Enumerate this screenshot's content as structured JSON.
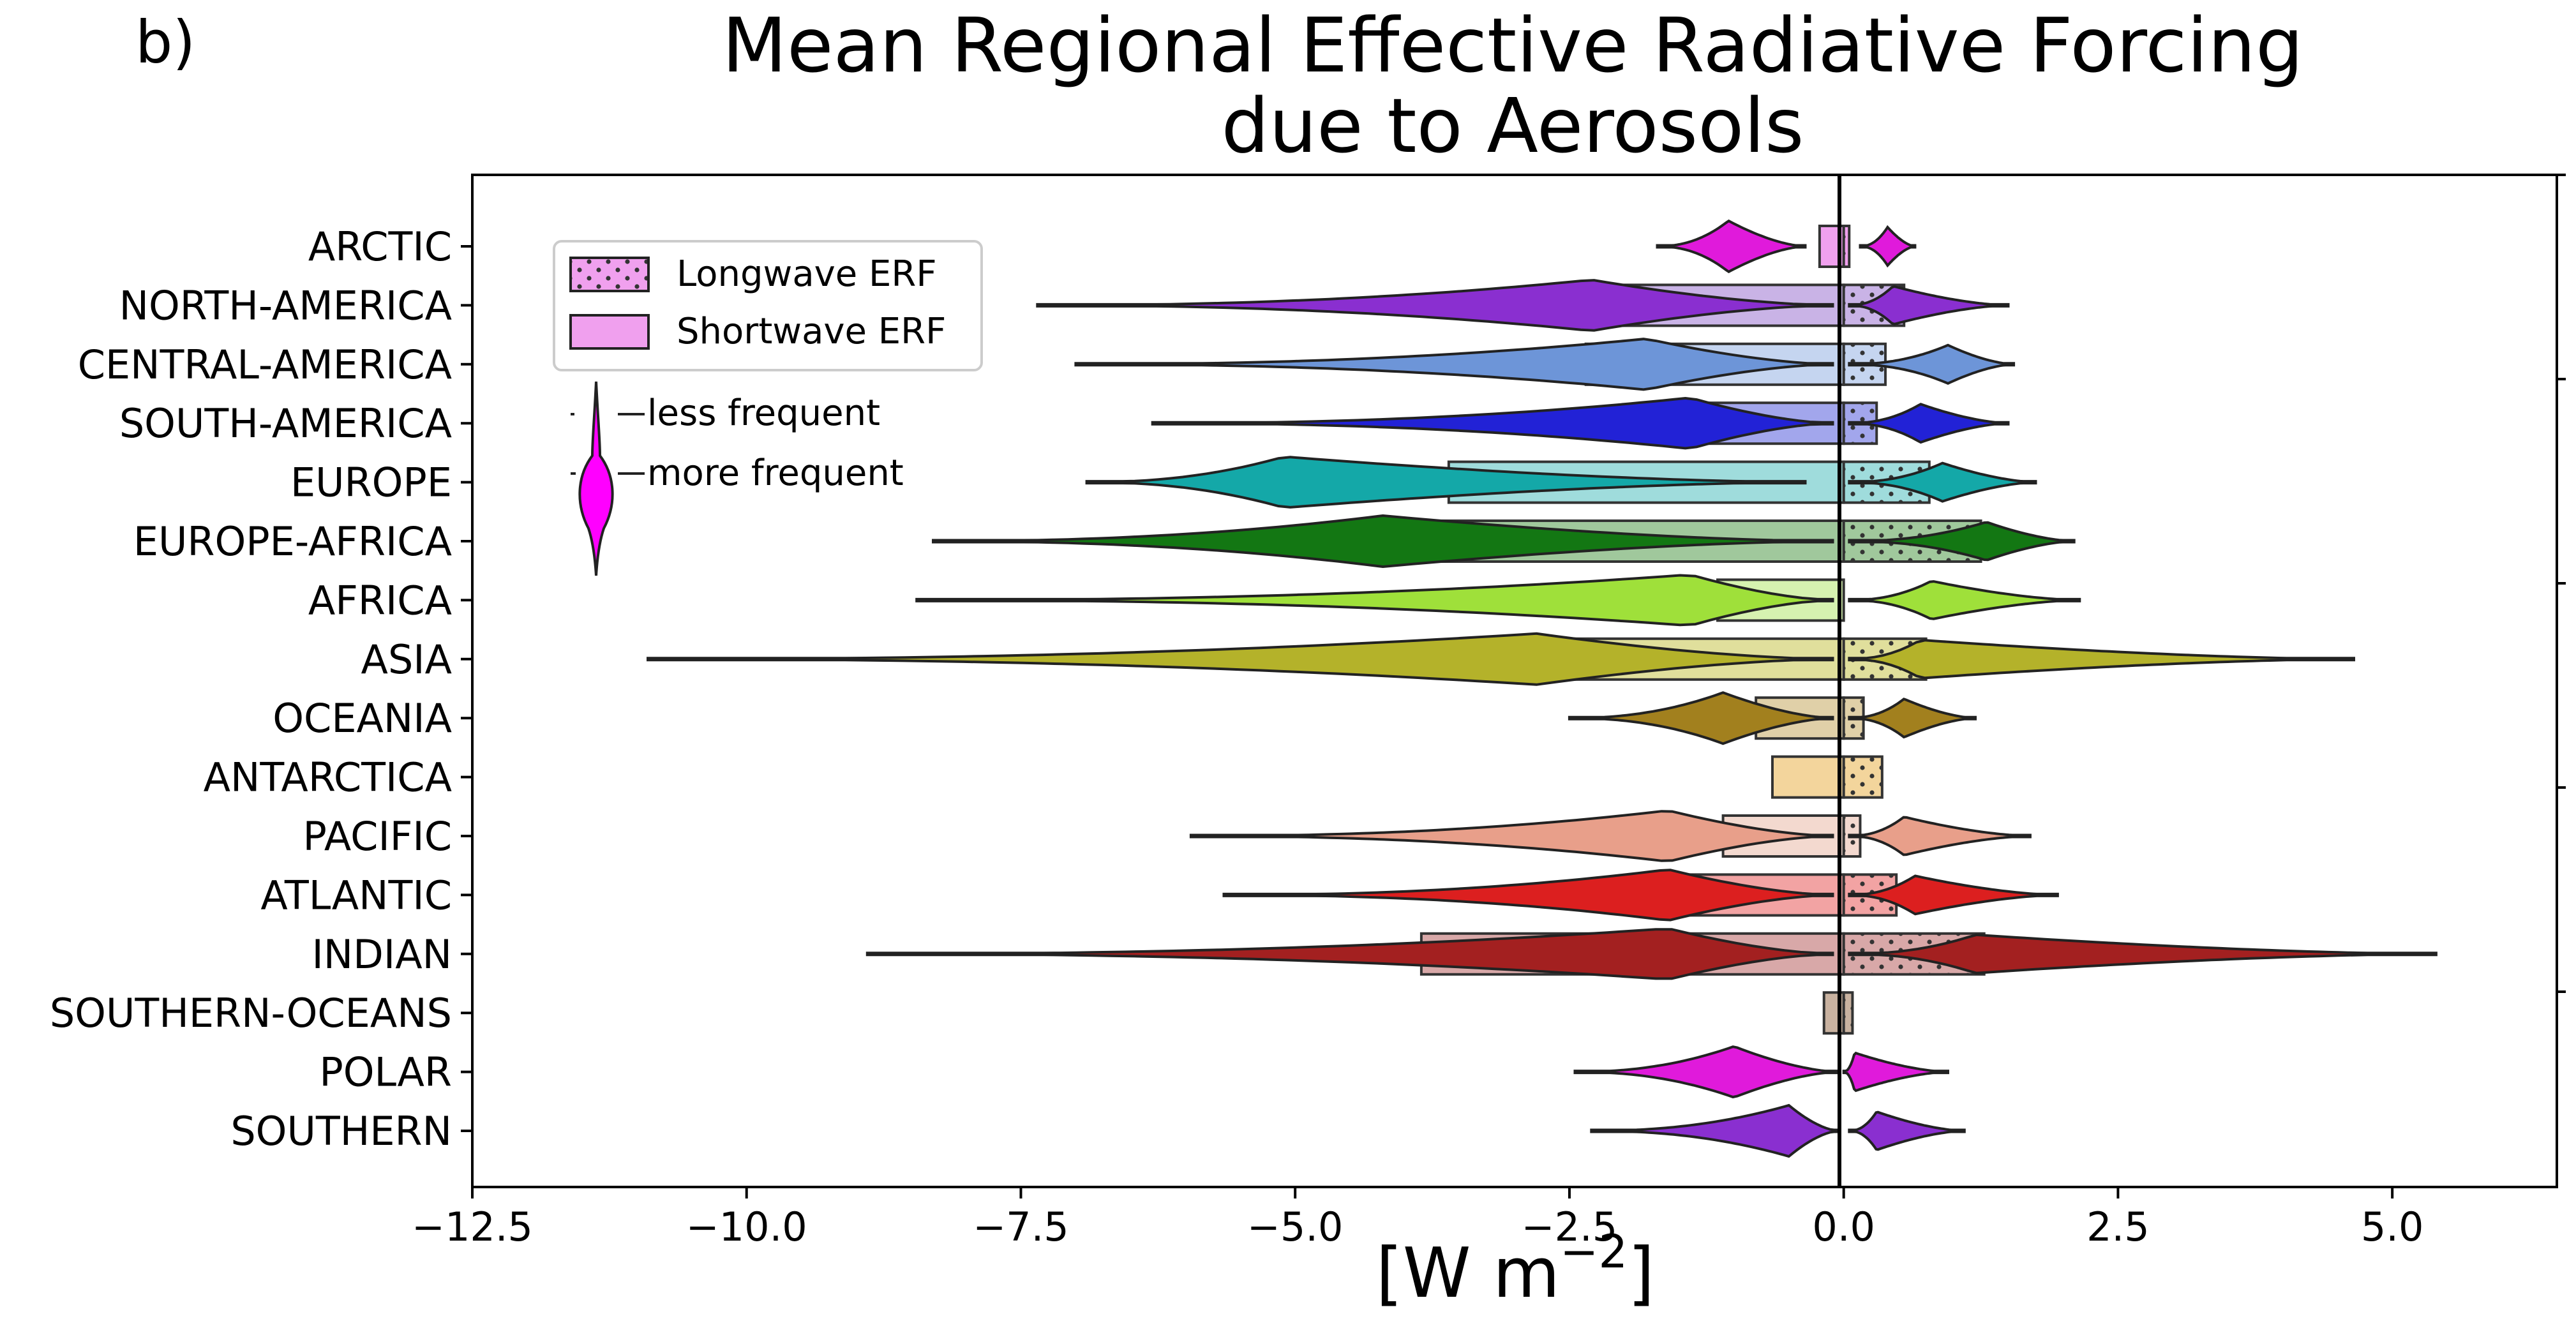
{
  "panel_label": "b)",
  "chart_data": {
    "type": "bar",
    "title_line1": "Mean Regional Effective Radiative Forcing",
    "title_line2": "due to Aerosols",
    "xlabel": "[W m",
    "xlabel_sup": "−2",
    "xlabel_close": "]",
    "xlim": [
      -12.5,
      6.5
    ],
    "xticks": [
      -12.5,
      -10.0,
      -7.5,
      -5.0,
      -2.5,
      0.0,
      2.5,
      5.0
    ],
    "xtick_labels": [
      "−12.5",
      "−10.0",
      "−7.5",
      "−5.0",
      "−2.5",
      "0.0",
      "2.5",
      "5.0"
    ],
    "legend": {
      "longwave": "Longwave ERF",
      "shortwave": "Shortwave ERF",
      "less_frequent": "less frequent",
      "more_frequent": "more frequent"
    },
    "regions": [
      {
        "name": "ARCTIC",
        "color": "#f0a0ee",
        "violin_color": "#e01adb",
        "sw_mean": -0.22,
        "lw_mean": 0.05,
        "sw_range": [
          -1.7,
          -0.35
        ],
        "sw_mode": -1.05,
        "lw_range": [
          0.15,
          0.65
        ],
        "lw_mode": 0.4
      },
      {
        "name": "NORTH-AMERICA",
        "color": "#c9b3e6",
        "violin_color": "#8a2fd0",
        "sw_mean": -2.5,
        "lw_mean": 0.55,
        "sw_range": [
          -7.35,
          -0.1
        ],
        "sw_mode": -2.3,
        "lw_range": [
          0.05,
          1.5
        ],
        "lw_mode": 0.45
      },
      {
        "name": "CENTRAL-AMERICA",
        "color": "#c5d5f0",
        "violin_color": "#6d95d8",
        "sw_mean": -2.35,
        "lw_mean": 0.38,
        "sw_range": [
          -7.0,
          -0.1
        ],
        "sw_mode": -1.8,
        "lw_range": [
          0.05,
          1.55
        ],
        "lw_mode": 0.95
      },
      {
        "name": "SOUTH-AMERICA",
        "color": "#a2a6ec",
        "violin_color": "#2222d6",
        "sw_mean": -1.5,
        "lw_mean": 0.3,
        "sw_range": [
          -6.3,
          -0.1
        ],
        "sw_mode": -1.4,
        "lw_range": [
          0.05,
          1.5
        ],
        "lw_mode": 0.7
      },
      {
        "name": "EUROPE",
        "color": "#9fdcdc",
        "violin_color": "#14a8a8",
        "sw_mean": -3.6,
        "lw_mean": 0.78,
        "sw_range": [
          -6.9,
          -0.35
        ],
        "sw_mode": -5.1,
        "lw_range": [
          0.05,
          1.75
        ],
        "lw_mode": 0.9
      },
      {
        "name": "EUROPE-AFRICA",
        "color": "#a0c89c",
        "violin_color": "#137713",
        "sw_mean": -3.8,
        "lw_mean": 1.25,
        "sw_range": [
          -8.3,
          -0.1
        ],
        "sw_mode": -4.2,
        "lw_range": [
          0.05,
          2.1
        ],
        "lw_mode": 1.3
      },
      {
        "name": "AFRICA",
        "color": "#d6f2b0",
        "violin_color": "#9fe03a",
        "sw_mean": -1.15,
        "lw_mean": 0.0,
        "sw_range": [
          -8.45,
          -0.1
        ],
        "sw_mode": -1.4,
        "lw_range": [
          0.05,
          2.15
        ],
        "lw_mode": 0.8
      },
      {
        "name": "ASIA",
        "color": "#e0df9c",
        "violin_color": "#b4b22a",
        "sw_mean": -3.1,
        "lw_mean": 0.75,
        "sw_range": [
          -10.9,
          -0.1
        ],
        "sw_mode": -2.8,
        "lw_range": [
          0.05,
          4.65
        ],
        "lw_mode": 0.7
      },
      {
        "name": "OCEANIA",
        "color": "#e0d0a8",
        "violin_color": "#a2801e",
        "sw_mean": -0.8,
        "lw_mean": 0.18,
        "sw_range": [
          -2.5,
          -0.1
        ],
        "sw_mode": -1.1,
        "lw_range": [
          0.05,
          1.2
        ],
        "lw_mode": 0.55
      },
      {
        "name": "ANTARCTICA",
        "color": "#f3d59c",
        "violin_color": "#d8a845",
        "sw_mean": -0.65,
        "lw_mean": 0.35
      },
      {
        "name": "PACIFIC",
        "color": "#f3d9cf",
        "violin_color": "#e89f8a",
        "sw_mean": -1.1,
        "lw_mean": 0.15,
        "sw_range": [
          -5.95,
          -0.1
        ],
        "sw_mode": -1.6,
        "lw_range": [
          0.05,
          1.7
        ],
        "lw_mode": 0.55
      },
      {
        "name": "ATLANTIC",
        "color": "#f2a3a3",
        "violin_color": "#dc1f1f",
        "sw_mean": -1.55,
        "lw_mean": 0.48,
        "sw_range": [
          -5.65,
          -0.1
        ],
        "sw_mode": -1.6,
        "lw_range": [
          0.05,
          1.95
        ],
        "lw_mode": 0.65
      },
      {
        "name": "INDIAN",
        "color": "#d8a8a8",
        "violin_color": "#a32020",
        "sw_mean": -3.85,
        "lw_mean": 1.28,
        "sw_range": [
          -8.9,
          -0.1
        ],
        "sw_mode": -1.6,
        "lw_range": [
          0.05,
          5.4
        ],
        "lw_mode": 1.2
      },
      {
        "name": "SOUTHERN-OCEANS",
        "color": "#c9b2a0",
        "violin_color": "#8e6e52",
        "sw_mean": -0.18,
        "lw_mean": 0.08
      },
      {
        "name": "POLAR",
        "color": "#f0a0ee",
        "violin_color": "#e01adb",
        "sw_mean": 0,
        "lw_mean": 0,
        "sw_range": [
          -2.45,
          -0.05
        ],
        "sw_mode": -1.0,
        "lw_range": [
          0.0,
          0.95
        ],
        "lw_mode": 0.1
      },
      {
        "name": "SOUTHERN",
        "color": "#c9b3e6",
        "violin_color": "#8a2fd0",
        "sw_mean": 0,
        "lw_mean": 0,
        "sw_range": [
          -2.3,
          -0.05
        ],
        "sw_mode": -0.5,
        "lw_range": [
          0.05,
          1.1
        ],
        "lw_mode": 0.3
      }
    ]
  }
}
